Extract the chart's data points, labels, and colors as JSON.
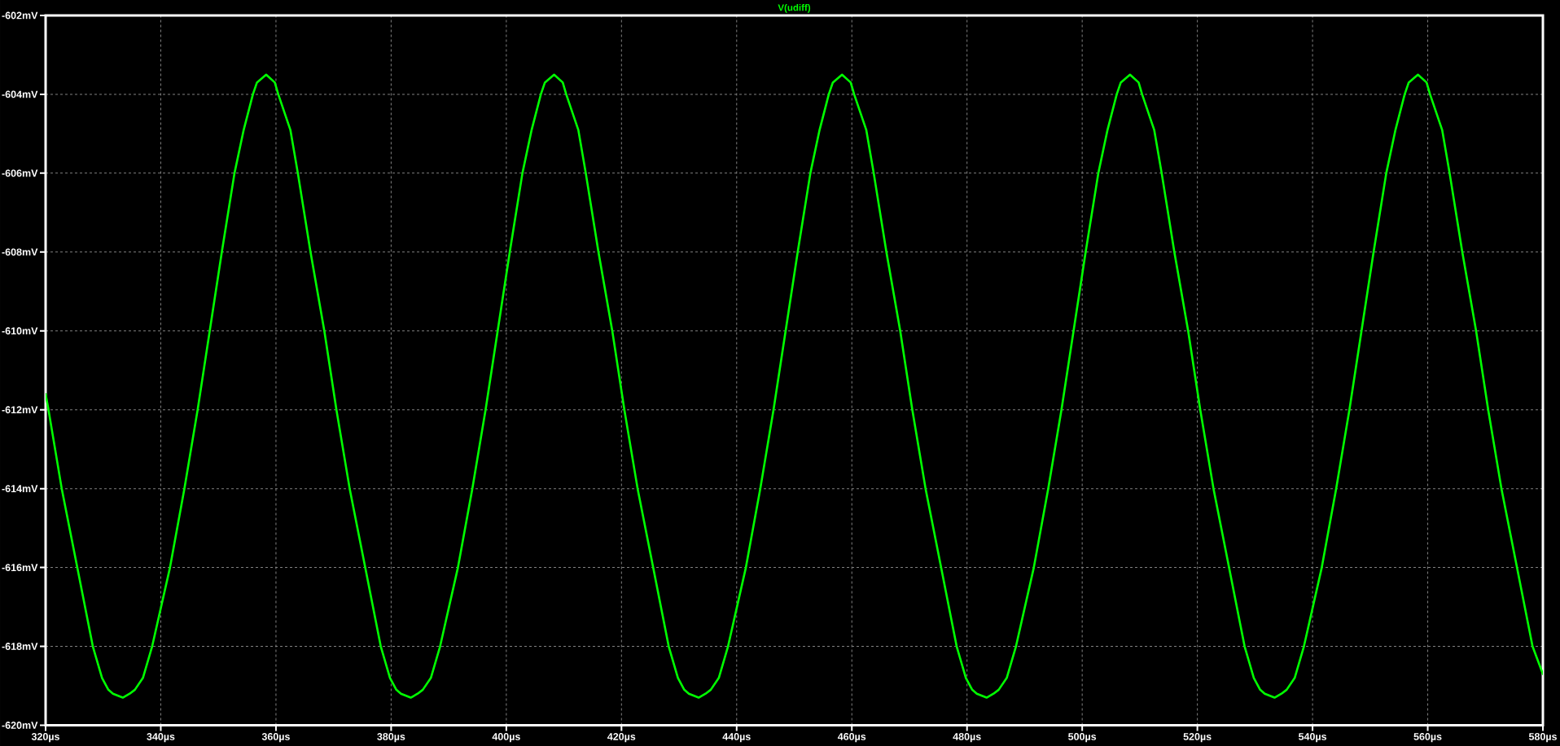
{
  "chart_data": {
    "type": "line",
    "x": [
      320.0,
      320.5,
      322.8,
      325.5,
      328.2,
      329.8,
      330.9,
      331.7,
      333.4,
      334.6,
      335.5,
      336.9,
      338.5,
      341.6,
      344.1,
      346.4,
      348.5,
      350.6,
      352.8,
      354.4,
      356.0,
      356.7,
      358.3,
      359.8,
      360.4,
      362.5,
      363.8,
      366.0,
      368.4,
      370.5,
      372.8,
      375.5,
      378.2,
      379.8,
      380.9,
      381.7,
      383.4,
      384.6,
      385.5,
      386.9,
      388.5,
      391.6,
      394.1,
      396.4,
      398.5,
      400.6,
      402.8,
      404.4,
      406.0,
      406.7,
      408.3,
      409.8,
      410.4,
      412.5,
      413.8,
      416.0,
      418.4,
      420.5,
      422.8,
      425.5,
      428.2,
      429.8,
      430.9,
      431.7,
      433.4,
      434.6,
      435.5,
      436.9,
      438.5,
      441.6,
      444.1,
      446.4,
      448.5,
      450.6,
      452.8,
      454.4,
      456.0,
      456.7,
      458.3,
      459.8,
      460.4,
      462.5,
      463.8,
      466.0,
      468.4,
      470.5,
      472.8,
      475.5,
      478.2,
      479.8,
      480.9,
      481.7,
      483.4,
      484.6,
      485.5,
      486.9,
      488.5,
      491.6,
      494.1,
      496.4,
      498.5,
      500.6,
      502.8,
      504.4,
      506.0,
      506.7,
      508.3,
      509.8,
      510.4,
      512.5,
      513.8,
      516.0,
      518.4,
      520.5,
      522.8,
      525.5,
      528.2,
      529.8,
      530.9,
      531.7,
      533.4,
      534.6,
      535.5,
      536.9,
      538.5,
      541.6,
      544.1,
      546.4,
      548.5,
      550.6,
      552.8,
      554.4,
      556.0,
      556.7,
      558.3,
      559.8,
      560.4,
      562.5,
      563.8,
      566.0,
      568.4,
      570.5,
      572.8,
      575.5,
      578.2,
      580.0
    ],
    "series": [
      {
        "name": "V(udiff)",
        "color": "#00ff00",
        "values": [
          -611.6,
          -612,
          -614,
          -616,
          -618,
          -618.8,
          -619.1,
          -619.2,
          -619.3,
          -619.2,
          -619.1,
          -618.8,
          -618,
          -616,
          -614,
          -612,
          -610,
          -608,
          -606,
          -604.9,
          -604,
          -603.7,
          -603.5,
          -603.7,
          -604,
          -604.9,
          -606,
          -608,
          -610,
          -612,
          -614,
          -616,
          -618,
          -618.8,
          -619.1,
          -619.2,
          -619.3,
          -619.2,
          -619.1,
          -618.8,
          -618,
          -616,
          -614,
          -612,
          -610,
          -608,
          -606,
          -604.9,
          -604,
          -603.7,
          -603.5,
          -603.7,
          -604,
          -604.9,
          -606,
          -608,
          -610,
          -612,
          -614,
          -616,
          -618,
          -618.8,
          -619.1,
          -619.2,
          -619.3,
          -619.2,
          -619.1,
          -618.8,
          -618,
          -616,
          -614,
          -612,
          -610,
          -608,
          -606,
          -604.9,
          -604,
          -603.7,
          -603.5,
          -603.7,
          -604,
          -604.9,
          -606,
          -608,
          -610,
          -612,
          -614,
          -616,
          -618,
          -618.8,
          -619.1,
          -619.2,
          -619.3,
          -619.2,
          -619.1,
          -618.8,
          -618,
          -616,
          -614,
          -612,
          -610,
          -608,
          -606,
          -604.9,
          -604,
          -603.7,
          -603.5,
          -603.7,
          -604,
          -604.9,
          -606,
          -608,
          -610,
          -612,
          -614,
          -616,
          -618,
          -618.8,
          -619.1,
          -619.2,
          -619.3,
          -619.2,
          -619.1,
          -618.8,
          -618,
          -616,
          -614,
          -612,
          -610,
          -608,
          -606,
          -604.9,
          -604,
          -603.7,
          -603.5,
          -603.7,
          -604,
          -604.9,
          -606,
          -608,
          -610,
          -612,
          -614,
          -616,
          -618,
          -618.7
        ]
      }
    ],
    "xlim": [
      320,
      580
    ],
    "ylim": [
      -620,
      -602
    ],
    "xticks": [
      {
        "value": 320,
        "label": "320µs"
      },
      {
        "value": 340,
        "label": "340µs"
      },
      {
        "value": 360,
        "label": "360µs"
      },
      {
        "value": 380,
        "label": "380µs"
      },
      {
        "value": 400,
        "label": "400µs"
      },
      {
        "value": 420,
        "label": "420µs"
      },
      {
        "value": 440,
        "label": "440µs"
      },
      {
        "value": 460,
        "label": "460µs"
      },
      {
        "value": 480,
        "label": "480µs"
      },
      {
        "value": 500,
        "label": "500µs"
      },
      {
        "value": 520,
        "label": "520µs"
      },
      {
        "value": 540,
        "label": "540µs"
      },
      {
        "value": 560,
        "label": "560µs"
      },
      {
        "value": 580,
        "label": "580µs"
      }
    ],
    "yticks": [
      {
        "value": -620,
        "label": "-620mV"
      },
      {
        "value": -618,
        "label": "-618mV"
      },
      {
        "value": -616,
        "label": "-616mV"
      },
      {
        "value": -614,
        "label": "-614mV"
      },
      {
        "value": -612,
        "label": "-612mV"
      },
      {
        "value": -610,
        "label": "-610mV"
      },
      {
        "value": -608,
        "label": "-608mV"
      },
      {
        "value": -606,
        "label": "-606mV"
      },
      {
        "value": -604,
        "label": "-604mV"
      },
      {
        "value": -602,
        "label": "-602mV"
      }
    ],
    "grid": true,
    "legend": "top",
    "line_style": "solid"
  }
}
